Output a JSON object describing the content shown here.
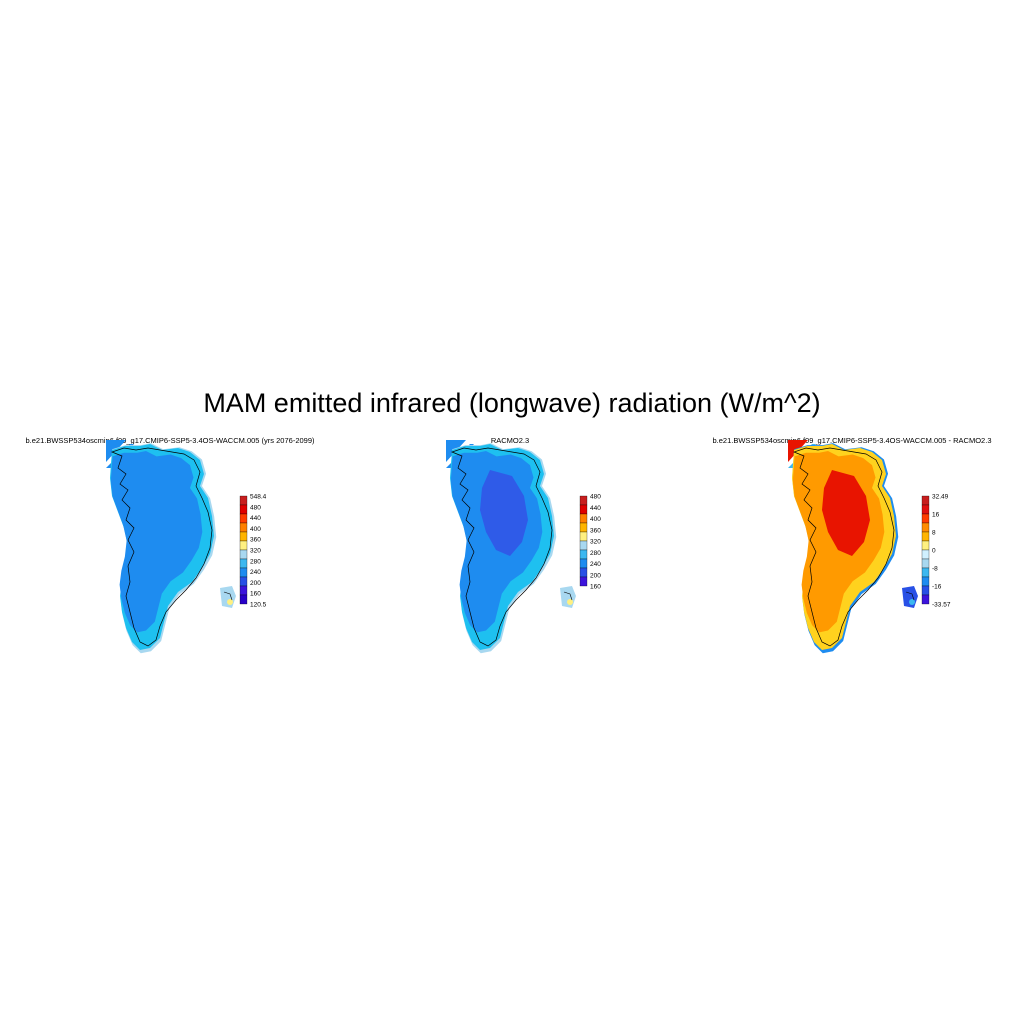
{
  "figure": {
    "title": "MAM emitted infrared (longwave) radiation (W/m^2)"
  },
  "panels": [
    {
      "title": "b.e21.BWSSP534oscmip6.f09_g17.CMIP6-SSP5-3.4OS-WACCM.005 (yrs 2076-2099)",
      "colorbar": {
        "labels": [
          "548.4",
          "480",
          "440",
          "400",
          "360",
          "320",
          "280",
          "240",
          "200",
          "160",
          "120.5"
        ],
        "colors": [
          "#c81e1e",
          "#e00000",
          "#ff3c00",
          "#ff7f00",
          "#ffb400",
          "#fff080",
          "#a8d8f0",
          "#3cb8f0",
          "#1e8cf0",
          "#2850e6",
          "#3c14dc",
          "#2800c8"
        ]
      },
      "fill": {
        "interior": "#1e8cf0",
        "margin": "#1ec0f0",
        "edge": "#a8d8f0"
      }
    },
    {
      "title": "RACMO2.3",
      "colorbar": {
        "labels": [
          "480",
          "440",
          "400",
          "360",
          "320",
          "280",
          "240",
          "200",
          "160"
        ],
        "colors": [
          "#c81e1e",
          "#e00000",
          "#ff7f00",
          "#ffb400",
          "#fff080",
          "#a8d8f0",
          "#3cb8f0",
          "#1e8cf0",
          "#2850e6",
          "#3c14dc"
        ]
      },
      "fill": {
        "interior": "#1e8cf0",
        "core": "#2f5be8",
        "margin": "#1ec0f0",
        "edge": "#a8d8f0"
      }
    },
    {
      "title": "b.e21.BWSSP534oscmip6.f09_g17.CMIP6-SSP5-3.4OS-WACCM.005 - RACMO2.3",
      "colorbar": {
        "labels": [
          "32.49",
          "16",
          "8",
          "0",
          "-8",
          "-16",
          "-33.57"
        ],
        "colors": [
          "#c81e1e",
          "#e01010",
          "#ff3c00",
          "#ff8c00",
          "#ffb400",
          "#fff080",
          "#d0f0ff",
          "#a8d8f0",
          "#3cb8f0",
          "#1e8cf0",
          "#2850e6",
          "#3c14dc"
        ]
      },
      "fill": {
        "interior": "#ff9a00",
        "core": "#e81400",
        "margin": "#ffd21e",
        "edge": "#1e8cf0"
      }
    }
  ]
}
